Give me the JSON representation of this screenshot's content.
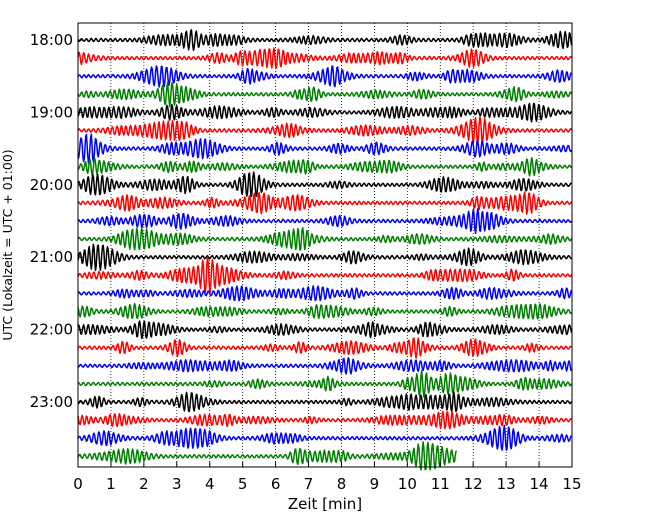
{
  "chart_data": {
    "type": "line",
    "title": "",
    "xlabel": "Zeit  [min]",
    "ylabel": "UTC (Lokalzeit = UTC + 01:00)",
    "xlim": [
      0,
      15
    ],
    "x_ticks": [
      0,
      1,
      2,
      3,
      4,
      5,
      6,
      7,
      8,
      9,
      10,
      11,
      12,
      13,
      14,
      15
    ],
    "y_tick_labels": [
      "18:00",
      "19:00",
      "20:00",
      "21:00",
      "22:00",
      "23:00"
    ],
    "start_time": "18:00",
    "trace_interval_minutes": 15,
    "trace_count": 24,
    "last_trace_end_minute": 11.5,
    "trace_colors": [
      "#000000",
      "#ff0000",
      "#0000ff",
      "#008000"
    ],
    "grid": "vertical dotted at each minute",
    "legend": "none"
  }
}
